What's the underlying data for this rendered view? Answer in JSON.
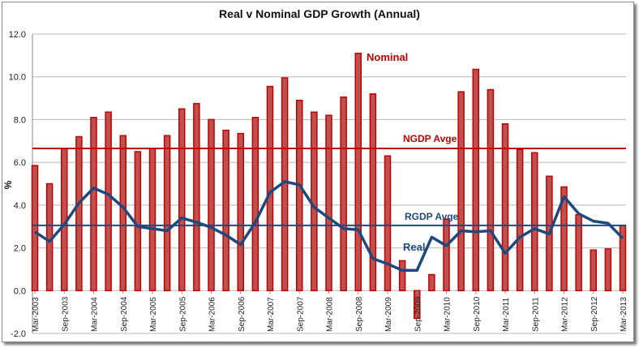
{
  "chart_data": {
    "type": "bar",
    "title": "Real v Nominal GDP Growth (Annual)",
    "ylabel": "%",
    "xlabel": "",
    "ylim": [
      -2,
      12
    ],
    "yticks": [
      "-2.0",
      "0.0",
      "2.0",
      "4.0",
      "6.0",
      "8.0",
      "10.0",
      "12.0"
    ],
    "grid": true,
    "categories": [
      "Mar-2003",
      "Jun-2003",
      "Sep-2003",
      "Dec-2003",
      "Mar-2004",
      "Jun-2004",
      "Sep-2004",
      "Dec-2004",
      "Mar-2005",
      "Jun-2005",
      "Sep-2005",
      "Dec-2005",
      "Mar-2006",
      "Jun-2006",
      "Sep-2006",
      "Dec-2006",
      "Mar-2007",
      "Jun-2007",
      "Sep-2007",
      "Dec-2007",
      "Mar-2008",
      "Jun-2008",
      "Sep-2008",
      "Dec-2008",
      "Mar-2009",
      "Jun-2009",
      "Sep-2009",
      "Dec-2009",
      "Mar-2010",
      "Jun-2010",
      "Sep-2010",
      "Dec-2010",
      "Mar-2011",
      "Jun-2011",
      "Sep-2011",
      "Dec-2011",
      "Mar-2012",
      "Jun-2012",
      "Sep-2012",
      "Dec-2012",
      "Mar-2013"
    ],
    "tick_labels": [
      "Mar-2003",
      "Sep-2003",
      "Mar-2004",
      "Sep-2004",
      "Mar-2005",
      "Sep-2005",
      "Mar-2006",
      "Sep-2006",
      "Mar-2007",
      "Sep-2007",
      "Mar-2008",
      "Sep-2008",
      "Mar-2009",
      "Sep-2009",
      "Mar-2010",
      "Sep-2010",
      "Mar-2011",
      "Sep-2011",
      "Mar-2012",
      "Sep-2012",
      "Mar-2013"
    ],
    "series": [
      {
        "name": "Nominal",
        "type": "bar",
        "color": "#c00000",
        "values": [
          5.85,
          5.0,
          6.65,
          7.2,
          8.1,
          8.35,
          7.25,
          6.5,
          6.65,
          7.25,
          8.5,
          8.75,
          8.0,
          7.5,
          7.35,
          8.1,
          9.55,
          9.95,
          8.9,
          8.35,
          8.2,
          9.05,
          11.1,
          9.2,
          6.3,
          1.4,
          -1.3,
          0.75,
          3.35,
          9.3,
          10.35,
          9.4,
          7.8,
          6.6,
          6.45,
          5.35,
          4.85,
          3.55,
          1.9,
          1.95,
          3.05
        ]
      },
      {
        "name": "Real",
        "type": "line",
        "color": "#1f497d",
        "values": [
          2.75,
          2.3,
          3.1,
          4.1,
          4.8,
          4.5,
          3.9,
          3.0,
          2.9,
          2.8,
          3.4,
          3.2,
          2.95,
          2.6,
          2.15,
          3.2,
          4.6,
          5.1,
          4.95,
          3.9,
          3.4,
          2.9,
          2.85,
          1.5,
          1.25,
          0.95,
          0.95,
          2.5,
          2.1,
          2.8,
          2.75,
          2.8,
          1.75,
          2.5,
          2.9,
          2.65,
          4.4,
          3.6,
          3.25,
          3.15,
          2.45
        ]
      }
    ],
    "reference_lines": [
      {
        "name": "NGDP Avge",
        "value": 6.65,
        "color": "#c00000"
      },
      {
        "name": "RGDP Avge",
        "value": 3.05,
        "color": "#1f497d"
      }
    ]
  }
}
